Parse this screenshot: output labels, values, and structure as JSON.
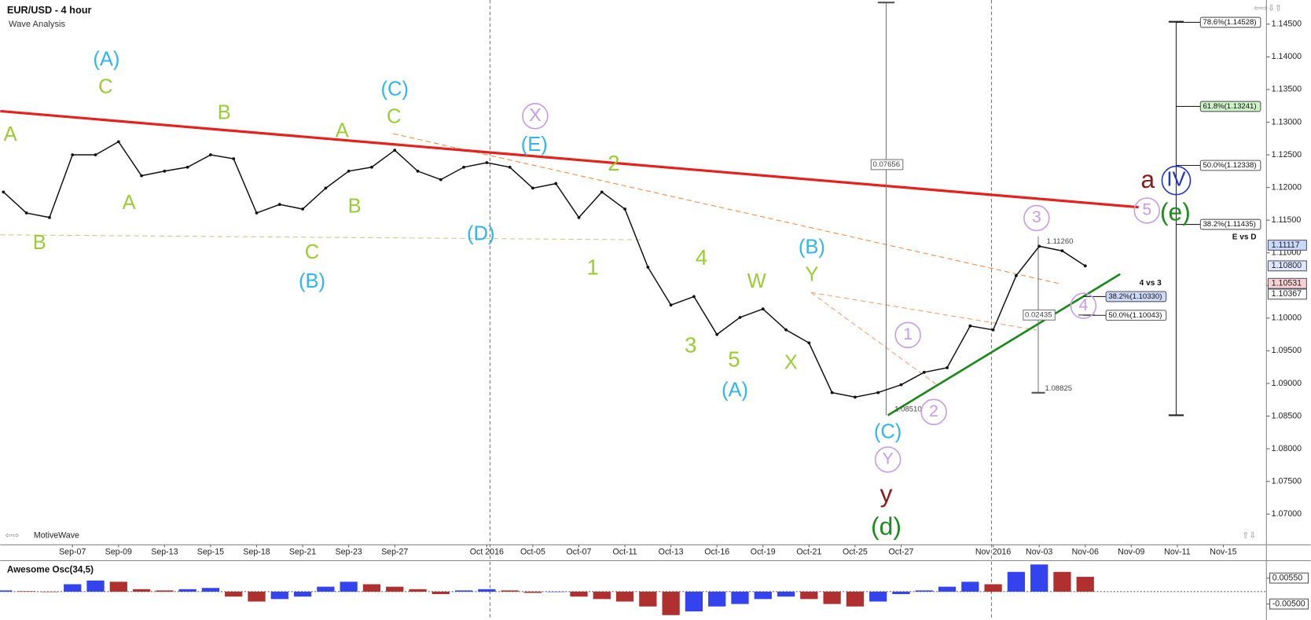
{
  "chart_data": [
    {
      "type": "line",
      "title": "EUR/USD - 4 hour",
      "subtitle": "Wave Analysis",
      "footer": "MotiveWave",
      "color": "#111111",
      "categories": [
        null,
        null,
        null,
        "Sep-07",
        null,
        "Sep-09",
        null,
        "Sep-13",
        null,
        "Sep-15",
        null,
        "Sep-18",
        null,
        "Sep-21",
        null,
        "Sep-23",
        null,
        "Sep-27",
        null,
        null,
        null,
        "Oct 2016",
        null,
        "Oct-05",
        null,
        "Oct-07",
        null,
        "Oct-11",
        null,
        "Oct-13",
        null,
        "Oct-16",
        null,
        "Oct-19",
        null,
        "Oct-21",
        null,
        "Oct-25",
        null,
        "Oct-27",
        null,
        null,
        null,
        "Nov 2016",
        null,
        "Nov-03",
        null,
        "Nov-06",
        null,
        "Nov-09",
        null,
        "Nov-11",
        null,
        "Nov-15",
        null,
        null
      ],
      "values": [
        1.1193,
        1.1161,
        1.1154,
        1.125,
        1.125,
        1.127,
        1.1218,
        1.1225,
        1.1231,
        1.125,
        1.1244,
        1.1161,
        1.1174,
        1.1167,
        1.1199,
        1.1225,
        1.1231,
        1.1257,
        1.1225,
        1.1212,
        1.1231,
        1.1238,
        1.1231,
        1.1199,
        1.1206,
        1.1154,
        1.1193,
        1.1167,
        1.1078,
        1.102,
        1.1033,
        1.0975,
        1.1001,
        1.1014,
        1.0982,
        1.0962,
        1.0886,
        1.0879,
        1.0886,
        1.0898,
        1.0917,
        1.0924,
        1.0988,
        1.0982,
        1.1065,
        1.111,
        1.1103,
        1.108,
        null,
        null,
        null,
        null,
        null,
        null,
        null,
        null
      ],
      "ylim": [
        1.0653,
        1.1487
      ],
      "yticks": [
        {
          "value": 1.07,
          "label": "1.07000"
        },
        {
          "value": 1.075,
          "label": "1.07500"
        },
        {
          "value": 1.08,
          "label": "1.08000"
        },
        {
          "value": 1.085,
          "label": "1.08500"
        },
        {
          "value": 1.09,
          "label": "1.09000"
        },
        {
          "value": 1.095,
          "label": "1.09500"
        },
        {
          "value": 1.1,
          "label": "1.10000"
        },
        {
          "value": 1.105,
          "label": "1.10500"
        },
        {
          "value": 1.11,
          "label": "1.11000"
        },
        {
          "value": 1.115,
          "label": "1.11500"
        },
        {
          "value": 1.12,
          "label": "1.12000"
        },
        {
          "value": 1.125,
          "label": "1.12500"
        },
        {
          "value": 1.13,
          "label": "1.13000"
        },
        {
          "value": 1.135,
          "label": "1.13500"
        },
        {
          "value": 1.14,
          "label": "1.14000"
        },
        {
          "value": 1.145,
          "label": "1.14500"
        }
      ],
      "price_markers": [
        {
          "value": 1.11117,
          "label": "1.11117",
          "color": "#c9d9fb"
        },
        {
          "value": 1.108,
          "label": "1.10800",
          "color": "#dfe7ff"
        },
        {
          "value": 1.10531,
          "label": "1.10531",
          "color": "#f7d2d2"
        },
        {
          "value": 1.10367,
          "label": "1.10367",
          "color": "#ffffff"
        }
      ],
      "fib_levels": [
        {
          "value": 1.14528,
          "label": "78.6%(1.14528)",
          "color": "#ffffff"
        },
        {
          "value": 1.13241,
          "label": "61.8%(1.13241)",
          "color": "#cdf2c8"
        },
        {
          "value": 1.12338,
          "label": "50.0%(1.12338)",
          "color": "#ffffff"
        },
        {
          "value": 1.11435,
          "label": "38.2%(1.11435)",
          "color": "#ffffff"
        },
        {
          "value": 1.1033,
          "label": "38.2%(1.10330)",
          "color": "#cbd8f7"
        },
        {
          "value": 1.10043,
          "label": "50.0%(1.10043)",
          "color": "#ffffff"
        }
      ],
      "measurements": [
        "0.07656",
        "0.02435",
        "1.08825",
        "1.08510",
        "1.11260"
      ],
      "notes": [
        "E vs D",
        "4 vs 3"
      ],
      "wave_labels": [
        {
          "text": "A",
          "color": "#9acd32"
        },
        {
          "text": "B",
          "color": "#9acd32"
        },
        {
          "text": "C",
          "color": "#9acd32"
        },
        {
          "text": "A",
          "color": "#9acd32"
        },
        {
          "text": "B",
          "color": "#9acd32"
        },
        {
          "text": "A",
          "color": "#9acd32"
        },
        {
          "text": "B",
          "color": "#9acd32"
        },
        {
          "text": "C",
          "color": "#9acd32"
        },
        {
          "text": "C",
          "color": "#9acd32"
        },
        {
          "text": "2",
          "color": "#9acd32"
        },
        {
          "text": "1",
          "color": "#9acd32"
        },
        {
          "text": "4",
          "color": "#9acd32"
        },
        {
          "text": "3",
          "color": "#9acd32"
        },
        {
          "text": "W",
          "color": "#9acd32"
        },
        {
          "text": "5",
          "color": "#9acd32"
        },
        {
          "text": "Y",
          "color": "#9acd32"
        },
        {
          "text": "X",
          "color": "#9acd32"
        },
        {
          "text": "(A)",
          "color": "#2fb5ef"
        },
        {
          "text": "(C)",
          "color": "#2fb5ef"
        },
        {
          "text": "(B)",
          "color": "#2fb5ef"
        },
        {
          "text": "(E)",
          "color": "#2fb5ef"
        },
        {
          "text": "(D)",
          "color": "#2fb5ef"
        },
        {
          "text": "(B)",
          "color": "#2fb5ef"
        },
        {
          "text": "(A)",
          "color": "#2fb5ef"
        },
        {
          "text": "(C)",
          "color": "#2fb5ef"
        },
        {
          "text": "X",
          "color": "#c79be8"
        },
        {
          "text": "1",
          "color": "#c79be8"
        },
        {
          "text": "2",
          "color": "#c79be8"
        },
        {
          "text": "3",
          "color": "#c79be8"
        },
        {
          "text": "4",
          "color": "#c79be8"
        },
        {
          "text": "Y",
          "color": "#c79be8"
        },
        {
          "text": "5",
          "color": "#c79be8"
        },
        {
          "text": "y",
          "color": "#8b1a1a"
        },
        {
          "text": "a",
          "color": "#8b1a1a"
        },
        {
          "text": "(d)",
          "color": "#1e8c1e"
        },
        {
          "text": "(e)",
          "color": "#1e8c1e"
        },
        {
          "text": "IV",
          "color": "#2233cc"
        }
      ]
    },
    {
      "type": "bar",
      "title": "Awesome Osc(34,5)",
      "up_color": "#3344ee",
      "down_color": "#b03030",
      "values": [
        0.0005,
        0.0002,
        0.0,
        0.003,
        0.0045,
        0.004,
        0.001,
        0.0005,
        0.001,
        0.0015,
        -0.002,
        -0.004,
        -0.003,
        -0.002,
        0.002,
        0.004,
        0.003,
        0.002,
        0.001,
        -0.001,
        0.0005,
        0.001,
        0.0005,
        -0.0005,
        0.0,
        -0.002,
        -0.003,
        -0.004,
        -0.006,
        -0.0095,
        -0.008,
        -0.006,
        -0.005,
        -0.003,
        -0.002,
        -0.003,
        -0.005,
        -0.006,
        -0.004,
        -0.001,
        0.0005,
        0.002,
        0.004,
        0.003,
        0.008,
        0.011,
        0.008,
        0.006,
        null,
        null,
        null,
        null,
        null,
        null,
        null,
        null
      ],
      "ylim": [
        -0.0108,
        0.0122
      ],
      "yticks": [
        {
          "value": 0.0055,
          "label": "0.00550"
        },
        {
          "value": -0.005,
          "label": "-0.00500"
        }
      ]
    }
  ]
}
